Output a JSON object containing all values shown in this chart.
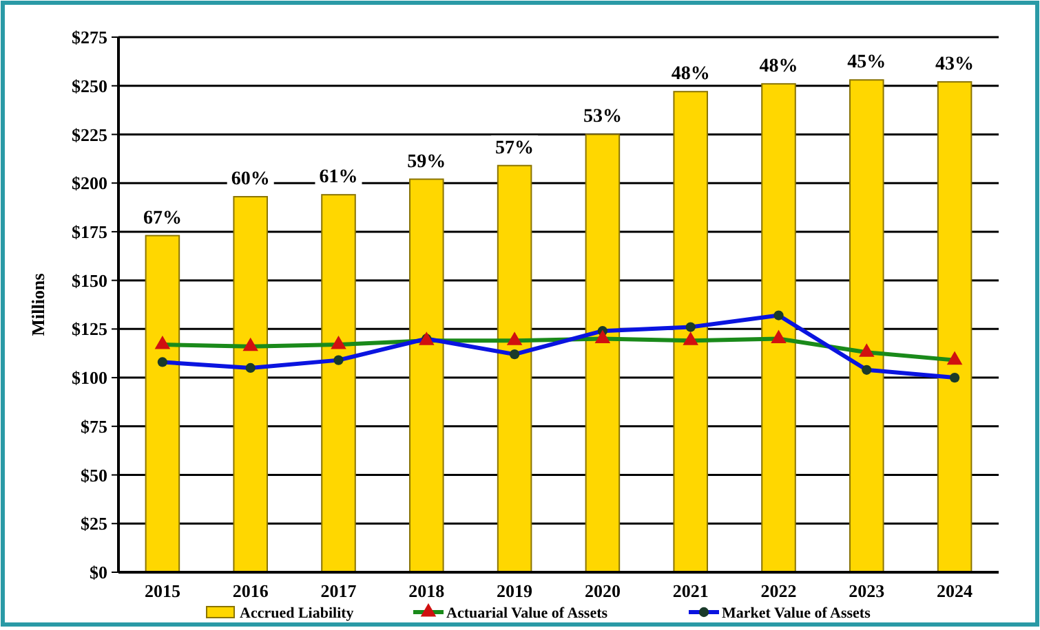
{
  "chart_data": {
    "type": "bar",
    "ylabel": "Millions",
    "categories": [
      "2015",
      "2016",
      "2017",
      "2018",
      "2019",
      "2020",
      "2021",
      "2022",
      "2023",
      "2024"
    ],
    "series": [
      {
        "name": "Accrued Liability",
        "color": "#ffd700",
        "values": [
          173,
          193,
          194,
          202,
          209,
          225,
          247,
          251,
          253,
          252
        ]
      },
      {
        "name": "Actuarial Value of Assets",
        "type": "line",
        "color": "#1a8a1a",
        "marker": "triangle",
        "values": [
          117,
          116,
          117,
          119,
          119,
          120,
          119,
          120,
          113,
          109
        ]
      },
      {
        "name": "Market Value of Assets",
        "type": "line",
        "color": "#0a14e0",
        "marker": "circle",
        "values": [
          108,
          105,
          109,
          120,
          112,
          124,
          126,
          132,
          104,
          100
        ]
      }
    ],
    "annotations": [
      {
        "text": "67%",
        "x": "2015",
        "y": 173
      },
      {
        "text": "60%",
        "x": "2016",
        "y": 193
      },
      {
        "text": "61%",
        "x": "2017",
        "y": 194
      },
      {
        "text": "59%",
        "x": "2018",
        "y": 202
      },
      {
        "text": "57%",
        "x": "2019",
        "y": 209
      },
      {
        "text": "53%",
        "x": "2020",
        "y": 225
      },
      {
        "text": "48%",
        "x": "2021",
        "y": 247
      },
      {
        "text": "48%",
        "x": "2022",
        "y": 251
      },
      {
        "text": "45%",
        "x": "2023",
        "y": 253
      },
      {
        "text": "43%",
        "x": "2024",
        "y": 252
      }
    ],
    "ylim": [
      0,
      275
    ],
    "yticks": [
      {
        "value": 0,
        "label": "$0"
      },
      {
        "value": 25,
        "label": "$25"
      },
      {
        "value": 50,
        "label": "$50"
      },
      {
        "value": 75,
        "label": "$75"
      },
      {
        "value": 100,
        "label": "$100"
      },
      {
        "value": 125,
        "label": "$125"
      },
      {
        "value": 150,
        "label": "$150"
      },
      {
        "value": 175,
        "label": "$175"
      },
      {
        "value": 200,
        "label": "$200"
      },
      {
        "value": 225,
        "label": "$225"
      },
      {
        "value": 250,
        "label": "$250"
      },
      {
        "value": 275,
        "label": "$275"
      }
    ],
    "grid": "y",
    "legend": "bottom"
  }
}
